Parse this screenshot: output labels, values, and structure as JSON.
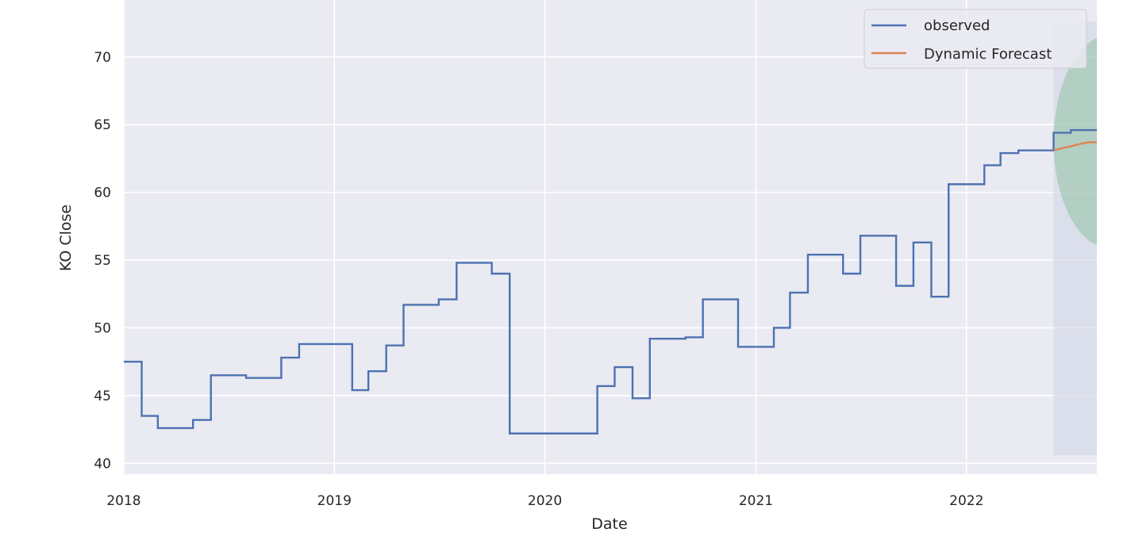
{
  "chart_data": {
    "type": "line",
    "xlabel": "Date",
    "ylabel": "KO Close",
    "xlim": [
      "2018-01-01",
      "2022-08-15"
    ],
    "ylim": [
      39.2,
      74.2
    ],
    "x_ticks": [
      "2018-01-01",
      "2019-01-01",
      "2020-01-01",
      "2021-01-01",
      "2022-01-01"
    ],
    "x_tick_labels": [
      "2018",
      "2019",
      "2020",
      "2021",
      "2022"
    ],
    "y_ticks": [
      40,
      45,
      50,
      55,
      60,
      65,
      70
    ],
    "y_tick_labels": [
      "40",
      "45",
      "50",
      "55",
      "60",
      "65",
      "70"
    ],
    "grid": true,
    "legend": {
      "placement": "top-right",
      "entries": [
        "observed",
        "Dynamic Forecast"
      ]
    },
    "colors": {
      "observed": "#4c72b0",
      "forecast": "#dd8452",
      "confidence_fill": "#55a868",
      "forecast_region": "#cdd3e6",
      "plot_background": "#eaeaf2",
      "grid": "#ffffff"
    },
    "series": [
      {
        "name": "observed",
        "step": true,
        "points": [
          [
            "2018-01-01",
            47.5
          ],
          [
            "2018-02-01",
            43.5
          ],
          [
            "2018-03-01",
            42.6
          ],
          [
            "2018-05-01",
            43.2
          ],
          [
            "2018-06-01",
            46.5
          ],
          [
            "2018-08-01",
            46.3
          ],
          [
            "2018-10-01",
            47.8
          ],
          [
            "2018-11-01",
            48.8
          ],
          [
            "2019-02-01",
            45.4
          ],
          [
            "2019-03-01",
            46.8
          ],
          [
            "2019-04-01",
            48.7
          ],
          [
            "2019-05-01",
            51.7
          ],
          [
            "2019-07-01",
            52.1
          ],
          [
            "2019-08-01",
            54.8
          ],
          [
            "2019-10-01",
            54.0
          ],
          [
            "2019-11-01",
            42.2
          ],
          [
            "2020-04-01",
            45.7
          ],
          [
            "2020-05-01",
            47.1
          ],
          [
            "2020-06-01",
            44.8
          ],
          [
            "2020-07-01",
            49.2
          ],
          [
            "2020-09-01",
            49.3
          ],
          [
            "2020-10-01",
            52.1
          ],
          [
            "2020-12-01",
            48.6
          ],
          [
            "2021-02-01",
            50.0
          ],
          [
            "2021-03-01",
            52.6
          ],
          [
            "2021-04-01",
            55.4
          ],
          [
            "2021-06-01",
            54.0
          ],
          [
            "2021-07-01",
            56.8
          ],
          [
            "2021-09-01",
            53.1
          ],
          [
            "2021-10-01",
            56.3
          ],
          [
            "2021-11-01",
            52.3
          ],
          [
            "2021-12-01",
            60.6
          ],
          [
            "2022-02-01",
            62.0
          ],
          [
            "2022-03-01",
            62.9
          ],
          [
            "2022-04-01",
            63.1
          ],
          [
            "2022-06-01",
            64.4
          ],
          [
            "2022-07-01",
            64.6
          ],
          [
            "2022-08-15",
            64.6
          ]
        ]
      },
      {
        "name": "Dynamic Forecast",
        "step": false,
        "points": [
          [
            "2022-06-01",
            63.1
          ],
          [
            "2022-06-10",
            63.2
          ],
          [
            "2022-06-20",
            63.3
          ],
          [
            "2022-07-01",
            63.4
          ],
          [
            "2022-07-10",
            63.5
          ],
          [
            "2022-07-20",
            63.6
          ],
          [
            "2022-08-01",
            63.7
          ],
          [
            "2022-08-15",
            63.7
          ]
        ]
      }
    ],
    "confidence_interval": {
      "start": "2022-06-01",
      "end": "2022-08-15",
      "lower_at_end": 56.1,
      "upper_at_end": 71.4
    },
    "forecast_region": {
      "start": "2022-06-01",
      "end": "2022-08-15",
      "ymin": 40.6,
      "ymax": 72.6
    }
  }
}
